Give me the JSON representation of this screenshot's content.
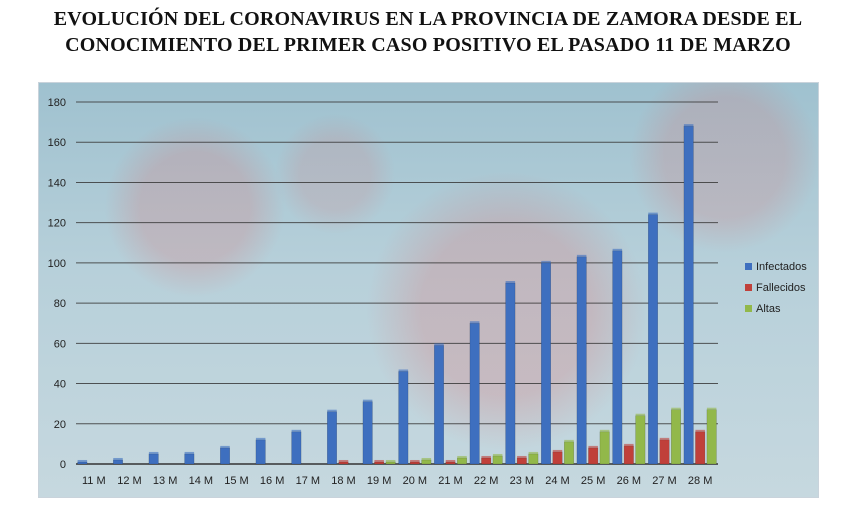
{
  "title": {
    "line1": "EVOLUCIÓN DEL CORONAVIRUS EN LA PROVINCIA DE ZAMORA DESDE EL",
    "line2": "CONOCIMIENTO DEL PRIMER CASO POSITIVO EL PASADO 11 DE MARZO"
  },
  "colors": {
    "infectados": "#3e6fbf",
    "fallecidos": "#c0403a",
    "altas": "#92b84a",
    "grid": "#3a3a3a"
  },
  "chart_data": {
    "type": "bar",
    "title": "EVOLUCIÓN DEL CORONAVIRUS EN LA PROVINCIA DE ZAMORA DESDE EL CONOCIMIENTO DEL PRIMER CASO POSITIVO EL PASADO 11 DE MARZO",
    "xlabel": "",
    "ylabel": "",
    "ylim": [
      0,
      180
    ],
    "yticks": [
      0,
      20,
      40,
      60,
      80,
      100,
      120,
      140,
      160,
      180
    ],
    "grid": true,
    "legend_position": "right",
    "categories": [
      "11 M",
      "12 M",
      "13 M",
      "14 M",
      "15 M",
      "16 M",
      "17 M",
      "18 M",
      "19 M",
      "20 M",
      "21 M",
      "22 M",
      "23 M",
      "24 M",
      "25 M",
      "26 M",
      "27 M",
      "28 M"
    ],
    "series": [
      {
        "name": "Infectados",
        "color": "#3e6fbf",
        "values": [
          1,
          2,
          5,
          5,
          8,
          12,
          16,
          26,
          31,
          46,
          59,
          70,
          90,
          100,
          103,
          106,
          124,
          168
        ]
      },
      {
        "name": "Fallecidos",
        "color": "#c0403a",
        "values": [
          0,
          0,
          0,
          0,
          0,
          0,
          0,
          1,
          1,
          1,
          1,
          3,
          3,
          6,
          8,
          9,
          12,
          16
        ]
      },
      {
        "name": "Altas",
        "color": "#92b84a",
        "values": [
          0,
          0,
          0,
          0,
          0,
          0,
          0,
          0,
          1,
          2,
          3,
          4,
          5,
          11,
          16,
          24,
          27,
          27
        ]
      }
    ]
  }
}
